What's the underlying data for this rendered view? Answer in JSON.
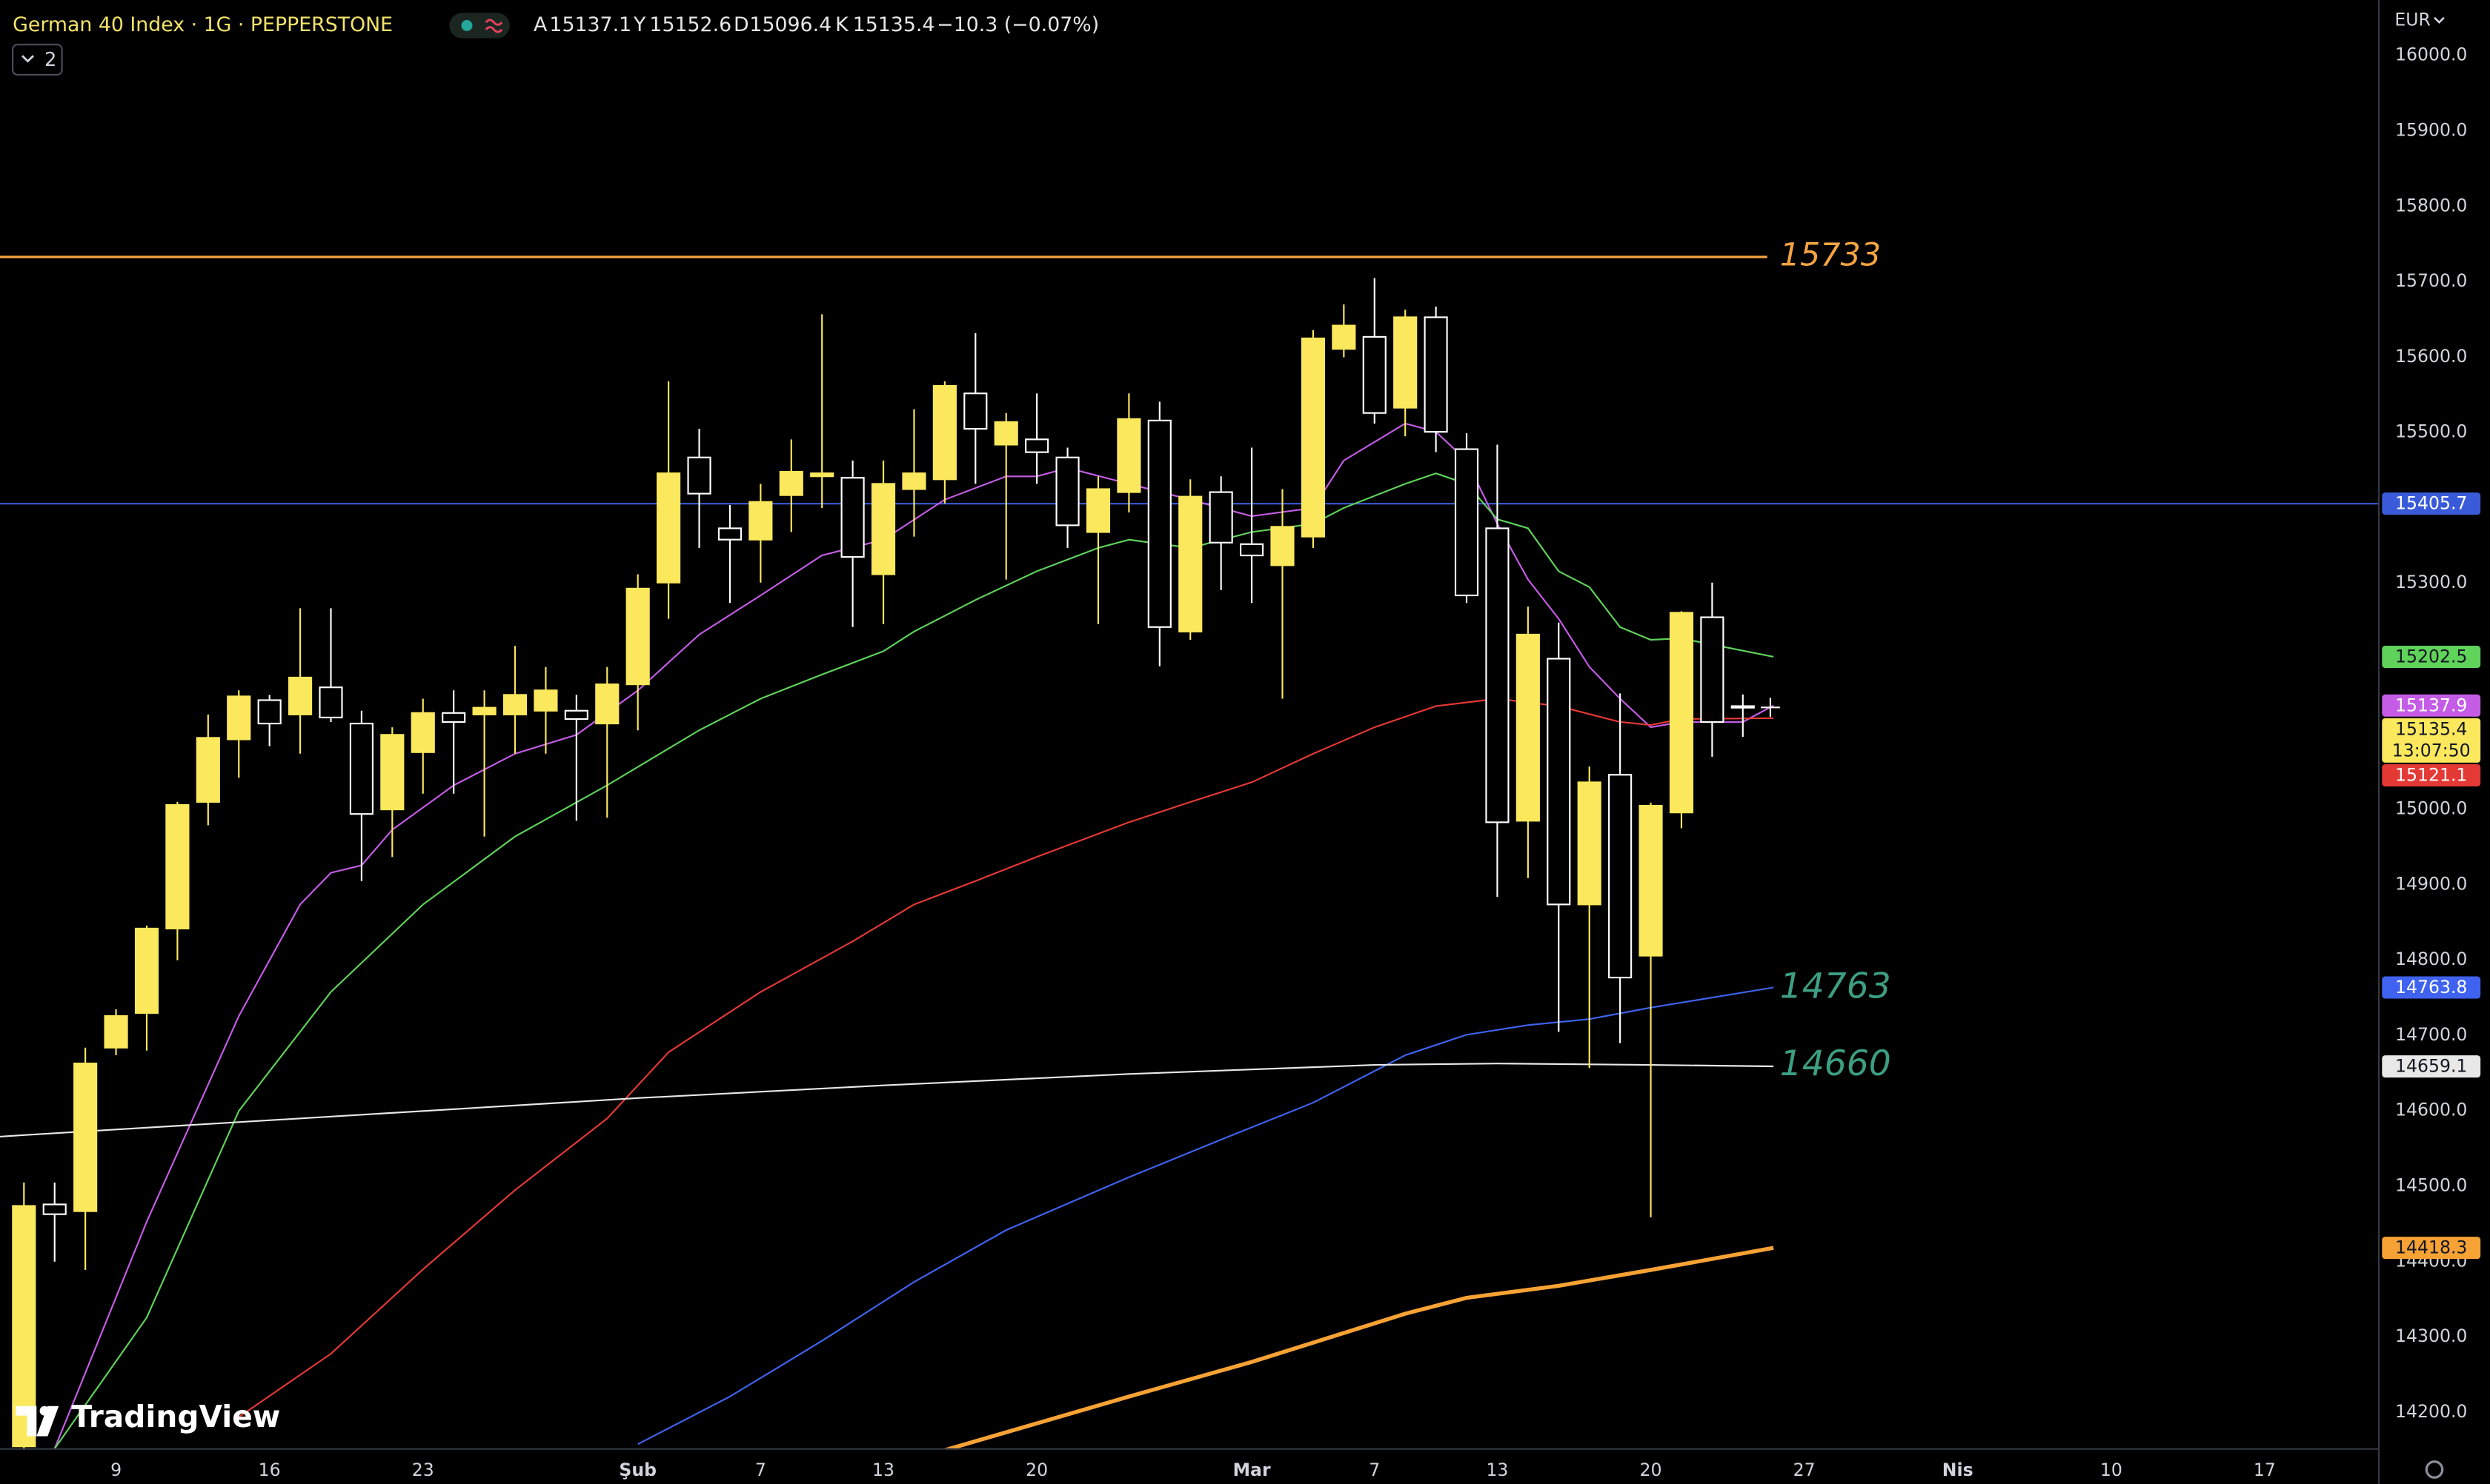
{
  "header": {
    "symbol": "German 40 Index · 1G · PEPPERSTONE",
    "open_label": "A",
    "high_label": "Y",
    "low_label": "D",
    "close_label": "K",
    "change": "−10.3 (−0.07%)",
    "currency": "EUR",
    "indicator_count": "2",
    "countdown": "13:07:50",
    "logo": "TradingView"
  },
  "chart_data": {
    "type": "candlestick",
    "x": [
      0,
      1,
      2,
      3,
      4,
      5,
      6,
      7,
      8,
      9,
      10,
      11,
      12,
      13,
      14,
      15,
      16,
      17,
      18,
      19,
      20,
      21,
      22,
      23,
      24,
      25,
      26,
      27,
      28,
      29,
      30,
      31,
      32,
      33,
      34,
      35,
      36,
      37,
      38,
      39,
      40,
      41,
      42,
      43,
      44,
      45,
      46,
      47,
      48,
      49,
      50,
      51,
      52,
      53,
      54,
      55,
      56
    ],
    "open": [
      14155,
      14476,
      14467,
      14684,
      14730,
      14842,
      15010,
      15093,
      15145,
      15126,
      15162,
      15114,
      15000,
      15076,
      15128,
      15126,
      15126,
      15131,
      15131,
      15114,
      15166,
      15301,
      15467,
      15373,
      15358,
      15417,
      15442,
      15440,
      15312,
      15425,
      15438,
      15552,
      15484,
      15491,
      15467,
      15368,
      15421,
      15516,
      15236,
      15421,
      15352,
      15324,
      15362,
      15611,
      15627,
      15533,
      15653,
      15478,
      15373,
      14985,
      15200,
      14874,
      15046,
      14806,
      14996,
      15255,
      15137.1
    ],
    "high": [
      14505,
      14505,
      14684,
      14735,
      14846,
      15010,
      15126,
      15158,
      15152,
      15267,
      15267,
      15131,
      15109,
      15147,
      15158,
      15158,
      15217,
      15189,
      15152,
      15189,
      15312,
      15568,
      15505,
      15404,
      15432,
      15491,
      15657,
      15463,
      15463,
      15531,
      15568,
      15632,
      15526,
      15552,
      15480,
      15442,
      15552,
      15541,
      15438,
      15442,
      15480,
      15425,
      15636,
      15670,
      15705,
      15663,
      15667,
      15499,
      15484,
      15269,
      15248,
      15057,
      15154,
      15009,
      15263,
      15301,
      15152.6
    ],
    "low": [
      14100,
      14400,
      14389,
      14674,
      14680,
      14800,
      14979,
      15042,
      15084,
      15074,
      15116,
      14905,
      14937,
      15021,
      15021,
      14964,
      15074,
      15074,
      14985,
      14989,
      15105,
      15253,
      15347,
      15274,
      15301,
      15368,
      15400,
      15242,
      15246,
      15362,
      15406,
      15432,
      15305,
      15432,
      15347,
      15246,
      15394,
      15190,
      15225,
      15291,
      15274,
      15147,
      15347,
      15600,
      15512,
      15495,
      15474,
      15274,
      14884,
      14909,
      14705,
      14657,
      14690,
      14459,
      14975,
      15070,
      15096.4
    ],
    "close": [
      14474,
      14463,
      14663,
      14726,
      14842,
      15006,
      15095,
      15150,
      15114,
      15175,
      15122,
      14994,
      15099,
      15128,
      15116,
      15135,
      15152,
      15158,
      15120,
      15166,
      15293,
      15446,
      15419,
      15358,
      15408,
      15448,
      15446,
      15335,
      15432,
      15446,
      15562,
      15505,
      15514,
      15474,
      15377,
      15425,
      15518,
      15242,
      15415,
      15354,
      15337,
      15375,
      15625,
      15642,
      15526,
      15653,
      15501,
      15284,
      14983,
      15232,
      14874,
      15036,
      14777,
      15005,
      15261,
      15116,
      15135.4
    ],
    "up_color": "#fce85d",
    "down_color": "#ffffff",
    "xlim": [
      -0.78,
      76.72
    ],
    "xticks": [
      {
        "value": 3,
        "label": "9"
      },
      {
        "value": 8,
        "label": "16"
      },
      {
        "value": 13,
        "label": "23"
      },
      {
        "value": 20,
        "label": "Şub"
      },
      {
        "value": 24,
        "label": "7"
      },
      {
        "value": 28,
        "label": "13"
      },
      {
        "value": 33,
        "label": "20"
      },
      {
        "value": 40,
        "label": "Mar"
      },
      {
        "value": 44,
        "label": "7"
      },
      {
        "value": 48,
        "label": "13"
      },
      {
        "value": 53,
        "label": "20"
      },
      {
        "value": 58,
        "label": "27"
      },
      {
        "value": 63,
        "label": "Nis"
      },
      {
        "value": 68,
        "label": "10"
      },
      {
        "value": 73,
        "label": "17"
      }
    ],
    "ylim": [
      14151.6,
      16073.7
    ],
    "yticks": [
      {
        "value": 14200,
        "label": "14200.0"
      },
      {
        "value": 14300,
        "label": "14300.0"
      },
      {
        "value": 14400,
        "label": "14400.0"
      },
      {
        "value": 14500,
        "label": "14500.0"
      },
      {
        "value": 14600,
        "label": "14600.0"
      },
      {
        "value": 14700,
        "label": "14700.0"
      },
      {
        "value": 14800,
        "label": "14800.0"
      },
      {
        "value": 14900,
        "label": "14900.0"
      },
      {
        "value": 15000,
        "label": "15000.0"
      },
      {
        "value": 15100,
        "label": "15100.0"
      },
      {
        "value": 15200,
        "label": "15200.0"
      },
      {
        "value": 15300,
        "label": "15300.0"
      },
      {
        "value": 15400,
        "label": "15400.0"
      },
      {
        "value": 15500,
        "label": "15500.0"
      },
      {
        "value": 15600,
        "label": "15600.0"
      },
      {
        "value": 15700,
        "label": "15700.0"
      },
      {
        "value": 15800,
        "label": "15800.0"
      },
      {
        "value": 15900,
        "label": "15900.0"
      },
      {
        "value": 16000,
        "label": "16000.0"
      }
    ],
    "grid": false,
    "series": [
      {
        "color": "#c45ce6",
        "width": 1,
        "x": [
          1,
          4,
          7,
          9,
          10,
          11,
          12,
          14,
          16,
          18,
          20,
          22,
          24,
          26,
          28,
          30,
          32,
          33,
          34,
          36,
          38,
          40,
          42,
          43,
          45,
          46,
          47,
          48,
          49,
          50,
          51,
          52,
          53,
          54,
          56,
          57
        ],
        "values": [
          14152,
          14453,
          14726,
          14874,
          14916,
          14926,
          14973,
          15032,
          15074,
          15099,
          15158,
          15232,
          15284,
          15337,
          15358,
          15411,
          15442,
          15442,
          15453,
          15432,
          15411,
          15389,
          15400,
          15463,
          15512,
          15501,
          15463,
          15379,
          15305,
          15253,
          15189,
          15147,
          15109,
          15116,
          15116,
          15137.9
        ]
      },
      {
        "color": "#5fd35a",
        "width": 1,
        "x": [
          1,
          4,
          7,
          10,
          13,
          16,
          19,
          22,
          24,
          26,
          28,
          29,
          31,
          33,
          35,
          36,
          38,
          40,
          42,
          43,
          45,
          46,
          47,
          48,
          49,
          50,
          51,
          52,
          53,
          54,
          57
        ],
        "values": [
          14152,
          14326,
          14600,
          14758,
          14874,
          14964,
          15032,
          15105,
          15147,
          15179,
          15210,
          15236,
          15278,
          15316,
          15347,
          15358,
          15347,
          15368,
          15379,
          15400,
          15432,
          15446,
          15432,
          15385,
          15373,
          15316,
          15295,
          15242,
          15225,
          15227,
          15202.5
        ]
      },
      {
        "color": "#e53935",
        "width": 1,
        "x": [
          7,
          10,
          13,
          16,
          19,
          21,
          24,
          27,
          29,
          31,
          33,
          36,
          38,
          40,
          42,
          44,
          46,
          48,
          50,
          52,
          53,
          54,
          57
        ],
        "values": [
          14194,
          14278,
          14390,
          14495,
          14590,
          14678,
          14758,
          14825,
          14874,
          14905,
          14937,
          14983,
          15010,
          15036,
          15074,
          15109,
          15137,
          15147,
          15137,
          15116,
          15112,
          15120,
          15121.1
        ]
      },
      {
        "color": "#3f63f0",
        "width": 1,
        "x": [
          20,
          23,
          26,
          29,
          32,
          36,
          39,
          42,
          45,
          47,
          49,
          51,
          53,
          57
        ],
        "values": [
          14158,
          14221,
          14295,
          14373,
          14442,
          14512,
          14562,
          14611,
          14674,
          14701,
          14714,
          14722,
          14737,
          14763.8
        ]
      },
      {
        "color": "#e8e8e8",
        "width": 1,
        "x": [
          -0.78,
          0,
          20,
          28,
          36,
          44,
          48,
          53,
          57
        ],
        "values": [
          14566,
          14568,
          14617,
          14634,
          14649,
          14661,
          14663,
          14661,
          14659.1
        ]
      },
      {
        "color": "#f7a234",
        "width": 2.5,
        "x": [
          30,
          36,
          40,
          45,
          47,
          50,
          53,
          57
        ],
        "values": [
          14150,
          14221,
          14267,
          14331,
          14352,
          14368,
          14389,
          14418.3
        ]
      }
    ],
    "hlines": [
      {
        "value": 15733,
        "color": "#f5a442",
        "label_style": "inline"
      },
      {
        "value": 15405.7,
        "color": "#3a5bd9",
        "label_style": "axis"
      }
    ],
    "annotations": [
      {
        "value": 14763,
        "color": "#3d9e82"
      },
      {
        "value": 14660,
        "color": "#3d9e82"
      }
    ]
  }
}
